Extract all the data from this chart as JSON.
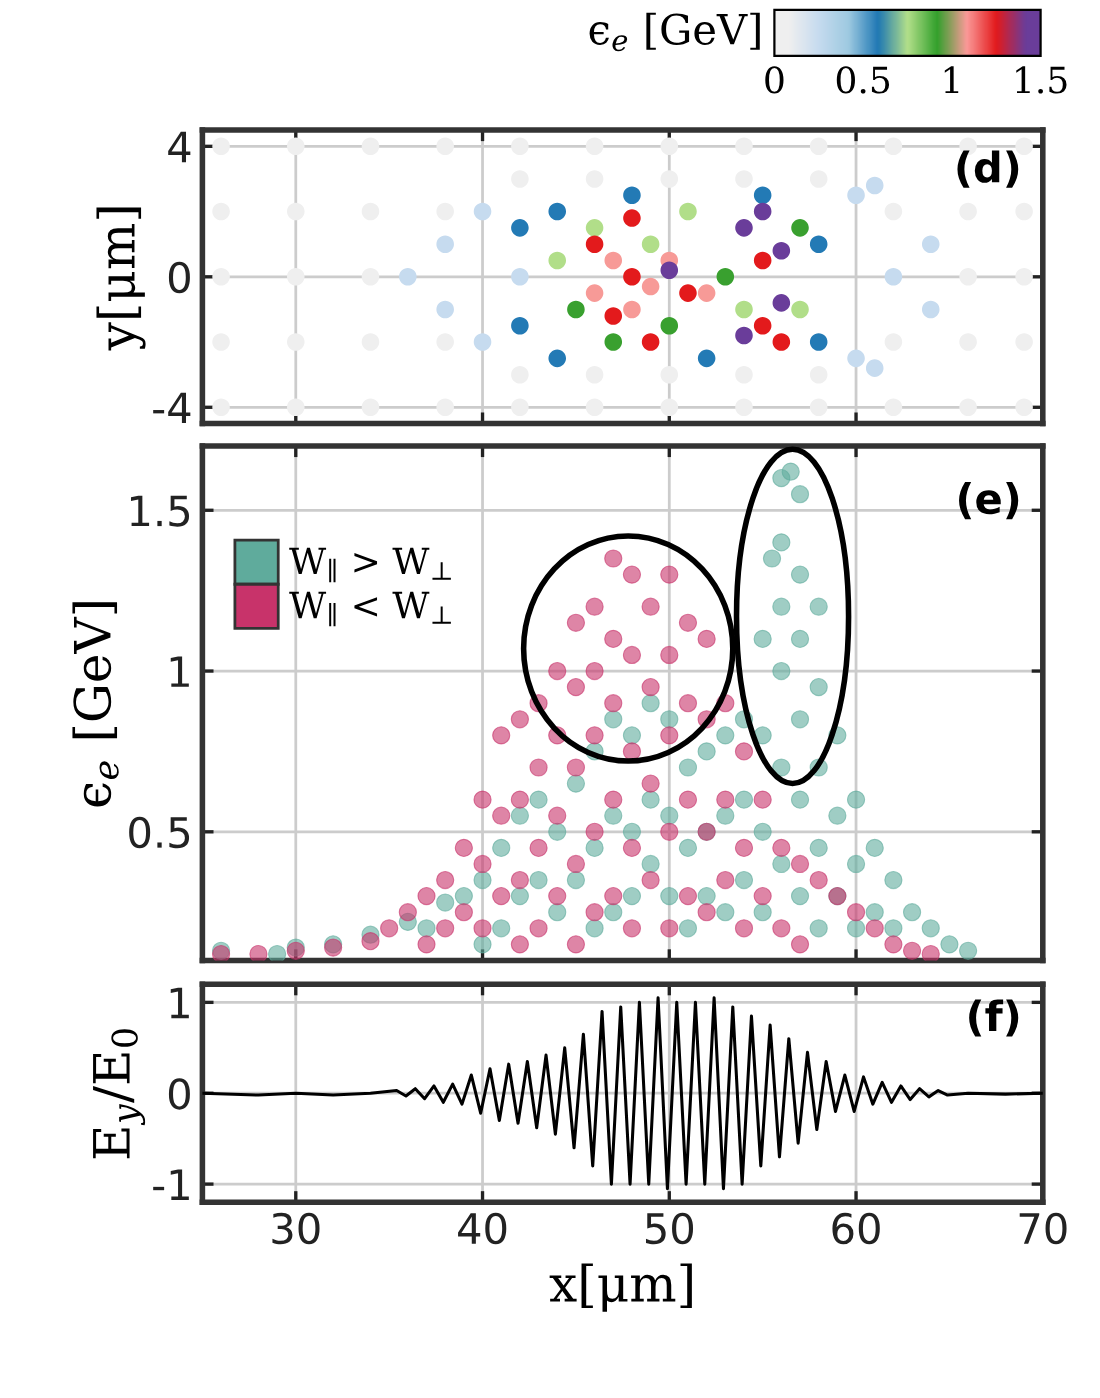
{
  "chart_data": [
    {
      "type": "scatter",
      "ylabel": "y[μm]",
      "clabel": "ϵ$_{e}$ [GeV]",
      "annotations": [
        "(d)"
      ],
      "xlim": [
        25,
        70
      ],
      "xticks": [
        30,
        40,
        50,
        60,
        70
      ],
      "ylim": [
        -4.5,
        4.5
      ],
      "yticks": [
        -4,
        0,
        4
      ],
      "clim": [
        0,
        1.5
      ],
      "cticks": [
        0,
        0.5,
        1,
        1.5
      ],
      "tick_labels": "y",
      "grid": true,
      "marker": "circle",
      "x": [
        26,
        30,
        34,
        38,
        42,
        46,
        50,
        54,
        58,
        62,
        66,
        69,
        26,
        30,
        34,
        38,
        42,
        46,
        50,
        54,
        58,
        62,
        66,
        69,
        26,
        30,
        34,
        38,
        42,
        46,
        50,
        54,
        58,
        62,
        66,
        69,
        26,
        30,
        34,
        38,
        42,
        46,
        50,
        54,
        58,
        62,
        66,
        69,
        26,
        30,
        34,
        66,
        69,
        36,
        38,
        38,
        40,
        40,
        42,
        62,
        61,
        61,
        64,
        64,
        60,
        60,
        42,
        42,
        44,
        44,
        55,
        52,
        58,
        58,
        48,
        44,
        45,
        46,
        47,
        49,
        50,
        51,
        53,
        54,
        57,
        57,
        46,
        47,
        48,
        50,
        52,
        49,
        46,
        47,
        48,
        48,
        49,
        51,
        55,
        55,
        56,
        54,
        54,
        55,
        56,
        56,
        50
      ],
      "values": [
        -4,
        -4,
        -4,
        -4,
        -4,
        -4,
        -4,
        -4,
        -4,
        -4,
        -4,
        -4,
        -2,
        -2,
        -2,
        -2,
        -3,
        -3,
        -3,
        -3,
        -3,
        -2,
        -2,
        -2,
        2,
        2,
        2,
        2,
        3,
        3,
        3,
        3,
        3,
        2,
        2,
        2,
        4,
        4,
        4,
        4,
        4,
        4,
        4,
        4,
        4,
        4,
        4,
        4,
        0,
        0,
        0,
        0,
        0,
        0,
        1,
        -1,
        2,
        -2,
        0,
        0,
        2.8,
        -2.8,
        1,
        -1,
        2.5,
        -2.5,
        1.5,
        -1.5,
        2,
        -2.5,
        2.5,
        -2.5,
        1,
        -2,
        2.5,
        0.5,
        -1,
        1.5,
        -2,
        1,
        -1.5,
        2,
        0,
        -1,
        1.5,
        -1,
        -0.5,
        0.5,
        -1,
        0.5,
        -0.5,
        -0.3,
        1,
        -1.2,
        0,
        1.8,
        -2,
        -0.5,
        0.5,
        -1.5,
        -2,
        1.5,
        -1.8,
        2,
        0.8,
        -0.8,
        0.2
      ],
      "cvalues": [
        0.08,
        0.08,
        0.08,
        0.08,
        0.08,
        0.08,
        0.08,
        0.08,
        0.08,
        0.08,
        0.08,
        0.08,
        0.08,
        0.08,
        0.08,
        0.08,
        0.08,
        0.08,
        0.08,
        0.08,
        0.08,
        0.08,
        0.08,
        0.08,
        0.08,
        0.08,
        0.08,
        0.08,
        0.08,
        0.08,
        0.08,
        0.08,
        0.08,
        0.08,
        0.08,
        0.08,
        0.08,
        0.08,
        0.08,
        0.08,
        0.08,
        0.08,
        0.08,
        0.08,
        0.08,
        0.08,
        0.08,
        0.08,
        0.08,
        0.08,
        0.08,
        0.08,
        0.08,
        0.25,
        0.25,
        0.25,
        0.25,
        0.25,
        0.25,
        0.25,
        0.25,
        0.25,
        0.25,
        0.25,
        0.25,
        0.25,
        0.58,
        0.58,
        0.58,
        0.58,
        0.58,
        0.58,
        0.58,
        0.58,
        0.58,
        0.75,
        0.92,
        0.75,
        0.92,
        0.75,
        0.92,
        0.75,
        0.92,
        0.75,
        0.92,
        0.75,
        1.08,
        1.08,
        1.08,
        1.08,
        1.08,
        1.08,
        1.25,
        1.25,
        1.25,
        1.25,
        1.25,
        1.25,
        1.25,
        1.25,
        1.25,
        1.42,
        1.42,
        1.42,
        1.42,
        1.42,
        1.42
      ]
    },
    {
      "type": "scatter",
      "ylabel": "ϵ$_{e}$ [GeV]",
      "annotations": [
        "(e)"
      ],
      "xlim": [
        25,
        70
      ],
      "xticks": [
        30,
        40,
        50,
        60,
        70
      ],
      "ylim": [
        0.1,
        1.7
      ],
      "yticks": [
        0.5,
        1,
        1.5
      ],
      "tick_labels": "y",
      "grid": true,
      "legend": "top left",
      "marker": "circle",
      "series": [
        {
          "name": "W$_{∥}$ > W$_{⊥}$",
          "color": "#5fab9c",
          "x": [
            26,
            29,
            30,
            32,
            34,
            36,
            37,
            38,
            39,
            40,
            40,
            41,
            41,
            42,
            42,
            43,
            43,
            44,
            44,
            45,
            45,
            46,
            46,
            46,
            47,
            47,
            47,
            48,
            48,
            48,
            49,
            49,
            49,
            50,
            50,
            50,
            51,
            51,
            51,
            52,
            52,
            52,
            53,
            53,
            53,
            54,
            54,
            54,
            55,
            55,
            55,
            55,
            55.5,
            56,
            56,
            56,
            56,
            56,
            56,
            56.5,
            57,
            57,
            57,
            57,
            57,
            57,
            58,
            58,
            58,
            58,
            58,
            59,
            59,
            59,
            60,
            60,
            60,
            61,
            61,
            62,
            62,
            63,
            64,
            65,
            66
          ],
          "values": [
            0.13,
            0.12,
            0.14,
            0.15,
            0.18,
            0.22,
            0.2,
            0.28,
            0.3,
            0.35,
            0.15,
            0.45,
            0.2,
            0.55,
            0.3,
            0.6,
            0.35,
            0.5,
            0.25,
            0.65,
            0.35,
            0.75,
            0.45,
            0.2,
            0.85,
            0.55,
            0.25,
            0.8,
            0.5,
            0.3,
            0.9,
            0.6,
            0.4,
            0.85,
            0.55,
            0.3,
            0.7,
            0.45,
            0.2,
            0.75,
            0.5,
            0.3,
            0.8,
            0.55,
            0.25,
            0.85,
            0.6,
            0.35,
            1.1,
            0.8,
            0.5,
            0.25,
            1.35,
            1.6,
            1.4,
            1.2,
            1.0,
            0.7,
            0.4,
            1.62,
            1.55,
            1.3,
            1.1,
            0.85,
            0.6,
            0.3,
            1.2,
            0.95,
            0.7,
            0.45,
            0.2,
            0.8,
            0.55,
            0.3,
            0.6,
            0.4,
            0.2,
            0.45,
            0.25,
            0.35,
            0.2,
            0.25,
            0.2,
            0.15,
            0.13
          ]
        },
        {
          "name": "W$_{∥}$ < W$_{⊥}$",
          "color": "#c8336a",
          "x": [
            26,
            28,
            30,
            32,
            34,
            35,
            36,
            37,
            37,
            38,
            38,
            39,
            39,
            40,
            40,
            40,
            41,
            41,
            41,
            42,
            42,
            42,
            42,
            43,
            43,
            43,
            43,
            44,
            44,
            44,
            44,
            45,
            45,
            45,
            45,
            45,
            46,
            46,
            46,
            46,
            46,
            47,
            47,
            47,
            47,
            47,
            48,
            48,
            48,
            48,
            48,
            49,
            49,
            49,
            49,
            50,
            50,
            50,
            50,
            50,
            51,
            51,
            51,
            51,
            52,
            52,
            52,
            52,
            53,
            53,
            53,
            54,
            54,
            54,
            55,
            55,
            56,
            56,
            57,
            57,
            58,
            59,
            60,
            61,
            62,
            63,
            64
          ],
          "values": [
            0.12,
            0.12,
            0.13,
            0.14,
            0.16,
            0.2,
            0.25,
            0.3,
            0.15,
            0.35,
            0.2,
            0.45,
            0.25,
            0.6,
            0.4,
            0.2,
            0.8,
            0.55,
            0.3,
            0.85,
            0.6,
            0.35,
            0.15,
            0.9,
            0.7,
            0.45,
            0.2,
            1.0,
            0.8,
            0.55,
            0.3,
            1.15,
            0.95,
            0.7,
            0.4,
            0.15,
            1.2,
            1.0,
            0.8,
            0.5,
            0.25,
            1.35,
            1.1,
            0.9,
            0.6,
            0.3,
            1.3,
            1.05,
            0.75,
            0.45,
            0.2,
            1.2,
            0.95,
            0.65,
            0.35,
            1.3,
            1.05,
            0.8,
            0.5,
            0.2,
            1.15,
            0.9,
            0.6,
            0.3,
            1.1,
            0.85,
            0.5,
            0.25,
            0.9,
            0.6,
            0.35,
            0.75,
            0.45,
            0.2,
            0.6,
            0.3,
            0.45,
            0.2,
            0.4,
            0.15,
            0.35,
            0.3,
            0.25,
            0.2,
            0.15,
            0.13,
            0.12
          ]
        }
      ]
    },
    {
      "type": "line",
      "xlabel": "x[μm]",
      "ylabel": "E$_{y}$/E$_{0}$",
      "annotations": [
        "(f)"
      ],
      "xlim": [
        25,
        70
      ],
      "xticks": [
        30,
        40,
        50,
        60,
        70
      ],
      "ylim": [
        -1.2,
        1.2
      ],
      "yticks": [
        -1,
        0,
        1
      ],
      "grid": true,
      "line_style": "solid",
      "marker": "none",
      "series": [
        {
          "color": "#000000",
          "x": [
            25,
            28,
            30,
            32,
            34,
            35.4,
            35.9,
            36.4,
            36.9,
            37.4,
            37.9,
            38.4,
            38.9,
            39.4,
            39.9,
            40.4,
            40.9,
            41.4,
            41.9,
            42.4,
            42.9,
            43.4,
            43.9,
            44.4,
            44.9,
            45.4,
            45.9,
            46.4,
            46.9,
            47.4,
            47.9,
            48.4,
            48.9,
            49.4,
            49.9,
            50.4,
            50.9,
            51.4,
            51.9,
            52.4,
            52.9,
            53.4,
            53.9,
            54.4,
            54.9,
            55.4,
            55.9,
            56.4,
            56.9,
            57.4,
            57.9,
            58.4,
            58.9,
            59.4,
            59.9,
            60.4,
            60.9,
            61.4,
            61.9,
            62.4,
            62.9,
            63.4,
            63.9,
            64.4,
            64.9,
            66,
            68,
            70
          ],
          "values": [
            0,
            -0.02,
            0,
            -0.02,
            0,
            0.03,
            -0.03,
            0.05,
            -0.06,
            0.08,
            -0.1,
            0.1,
            -0.12,
            0.2,
            -0.22,
            0.27,
            -0.3,
            0.32,
            -0.33,
            0.35,
            -0.38,
            0.42,
            -0.45,
            0.5,
            -0.6,
            0.65,
            -0.8,
            0.9,
            -1.0,
            0.95,
            -1.0,
            1.0,
            -1.0,
            1.05,
            -1.05,
            1.0,
            -1.0,
            1.0,
            -1.0,
            1.05,
            -1.05,
            0.95,
            -1.0,
            0.85,
            -0.8,
            0.75,
            -0.7,
            0.6,
            -0.55,
            0.45,
            -0.4,
            0.35,
            -0.2,
            0.2,
            -0.2,
            0.18,
            -0.12,
            0.12,
            -0.1,
            0.08,
            -0.07,
            0.05,
            -0.04,
            0.03,
            -0.02,
            0,
            -0.01,
            0
          ]
        }
      ]
    }
  ]
}
